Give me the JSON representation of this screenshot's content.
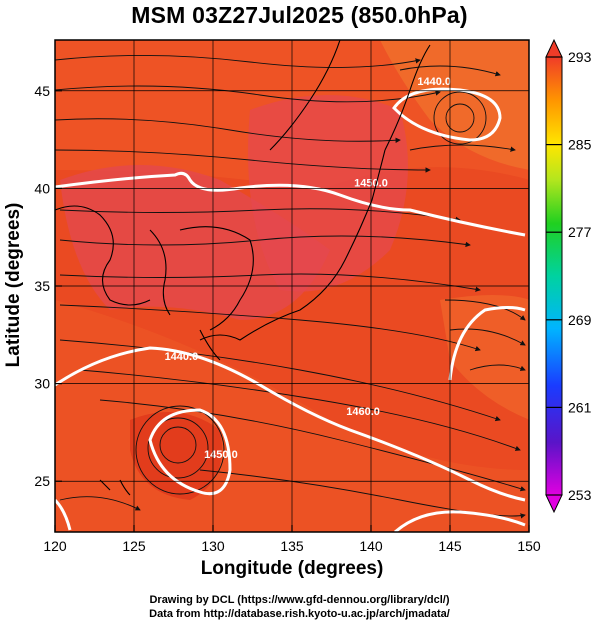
{
  "title": "MSM 03Z27Jul2025 (850.0hPa)",
  "xlabel": "Longitude (degrees)",
  "ylabel": "Latitude  (degrees)",
  "credit_line1": "Drawing by DCL (https://www.gfd-dennou.org/library/dcl/)",
  "credit_line2": "Data from http://database.rish.kyoto-u.ac.jp/arch/jmadata/",
  "chart_data": {
    "type": "heatmap",
    "variable_shading": "temperature (K)",
    "x_ticks": [
      120,
      125,
      130,
      135,
      140,
      145,
      150
    ],
    "y_ticks": [
      25,
      30,
      35,
      40,
      45
    ],
    "xlim": [
      120,
      150
    ],
    "ylim": [
      22.4,
      47.6
    ],
    "colorbar": {
      "ticks": [
        293,
        285,
        277,
        269,
        261,
        253
      ],
      "range": [
        253,
        293
      ]
    },
    "contour_labels": [
      {
        "text": "1440.0",
        "lon": 144.0,
        "lat": 45.3
      },
      {
        "text": "1450.0",
        "lon": 140.0,
        "lat": 40.1
      },
      {
        "text": "1440.0",
        "lon": 128.0,
        "lat": 31.2
      },
      {
        "text": "1460.0",
        "lon": 139.5,
        "lat": 28.4
      },
      {
        "text": "1450.0",
        "lon": 130.5,
        "lat": 26.2
      }
    ],
    "colors": {
      "warm": "#e8401f",
      "warmer": "#f05a28",
      "land_tint": "#e54b52",
      "contour": "#ffffff",
      "coast": "#000000"
    }
  }
}
